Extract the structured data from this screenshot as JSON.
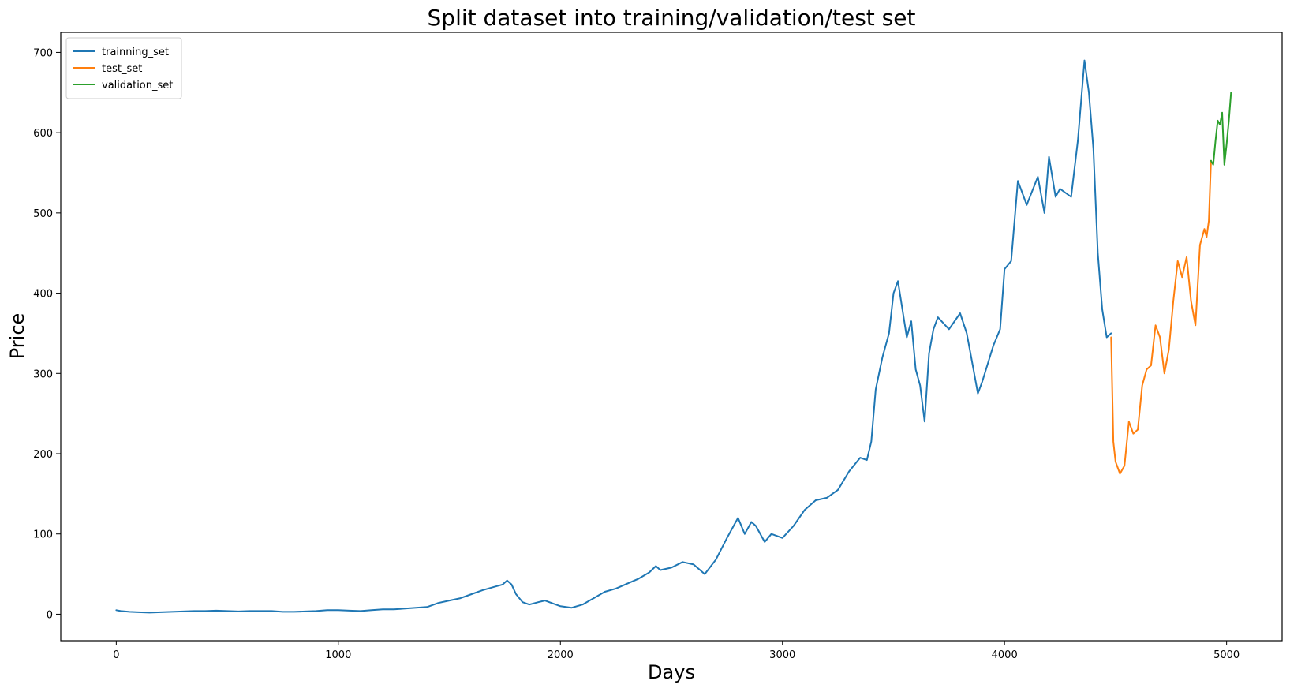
{
  "chart_data": {
    "type": "line",
    "title": "Split dataset into training/validation/test set",
    "xlabel": "Days",
    "ylabel": "Price",
    "xlim": [
      -250,
      5250
    ],
    "ylim": [
      -33,
      725
    ],
    "x_ticks": [
      0,
      1000,
      2000,
      3000,
      4000,
      5000
    ],
    "y_ticks": [
      0,
      100,
      200,
      300,
      400,
      500,
      600,
      700
    ],
    "grid": false,
    "legend": "upper-left",
    "series": [
      {
        "name": "trainning_set",
        "color": "#1f77b4",
        "points": [
          [
            0,
            5
          ],
          [
            20,
            4
          ],
          [
            60,
            3
          ],
          [
            100,
            2.5
          ],
          [
            150,
            2
          ],
          [
            200,
            2.5
          ],
          [
            250,
            3
          ],
          [
            300,
            3.5
          ],
          [
            350,
            4
          ],
          [
            400,
            4
          ],
          [
            450,
            4.5
          ],
          [
            500,
            4
          ],
          [
            550,
            3.5
          ],
          [
            600,
            4
          ],
          [
            650,
            4
          ],
          [
            700,
            4
          ],
          [
            750,
            3
          ],
          [
            800,
            3
          ],
          [
            850,
            3.5
          ],
          [
            900,
            4
          ],
          [
            950,
            5
          ],
          [
            1000,
            5
          ],
          [
            1050,
            4.5
          ],
          [
            1100,
            4
          ],
          [
            1150,
            5
          ],
          [
            1200,
            6
          ],
          [
            1250,
            6
          ],
          [
            1300,
            7
          ],
          [
            1350,
            8
          ],
          [
            1400,
            9
          ],
          [
            1450,
            14
          ],
          [
            1500,
            17
          ],
          [
            1550,
            20
          ],
          [
            1600,
            25
          ],
          [
            1650,
            30
          ],
          [
            1700,
            34
          ],
          [
            1740,
            37
          ],
          [
            1760,
            42
          ],
          [
            1780,
            37
          ],
          [
            1800,
            25
          ],
          [
            1830,
            15
          ],
          [
            1860,
            12
          ],
          [
            1900,
            15
          ],
          [
            1930,
            17
          ],
          [
            1960,
            14
          ],
          [
            2000,
            10
          ],
          [
            2050,
            8
          ],
          [
            2100,
            12
          ],
          [
            2150,
            20
          ],
          [
            2200,
            28
          ],
          [
            2250,
            32
          ],
          [
            2300,
            38
          ],
          [
            2350,
            44
          ],
          [
            2400,
            52
          ],
          [
            2430,
            60
          ],
          [
            2450,
            55
          ],
          [
            2500,
            58
          ],
          [
            2550,
            65
          ],
          [
            2600,
            62
          ],
          [
            2650,
            50
          ],
          [
            2700,
            68
          ],
          [
            2750,
            95
          ],
          [
            2780,
            110
          ],
          [
            2800,
            120
          ],
          [
            2830,
            100
          ],
          [
            2860,
            115
          ],
          [
            2880,
            110
          ],
          [
            2920,
            90
          ],
          [
            2950,
            100
          ],
          [
            3000,
            95
          ],
          [
            3050,
            110
          ],
          [
            3100,
            130
          ],
          [
            3150,
            142
          ],
          [
            3200,
            145
          ],
          [
            3250,
            155
          ],
          [
            3300,
            178
          ],
          [
            3350,
            195
          ],
          [
            3380,
            192
          ],
          [
            3400,
            215
          ],
          [
            3420,
            280
          ],
          [
            3450,
            320
          ],
          [
            3480,
            350
          ],
          [
            3500,
            400
          ],
          [
            3520,
            415
          ],
          [
            3540,
            380
          ],
          [
            3560,
            345
          ],
          [
            3580,
            365
          ],
          [
            3600,
            305
          ],
          [
            3620,
            285
          ],
          [
            3640,
            240
          ],
          [
            3660,
            325
          ],
          [
            3680,
            355
          ],
          [
            3700,
            370
          ],
          [
            3750,
            355
          ],
          [
            3800,
            375
          ],
          [
            3830,
            350
          ],
          [
            3850,
            320
          ],
          [
            3880,
            275
          ],
          [
            3900,
            290
          ],
          [
            3950,
            335
          ],
          [
            3980,
            355
          ],
          [
            4000,
            430
          ],
          [
            4030,
            440
          ],
          [
            4060,
            540
          ],
          [
            4100,
            510
          ],
          [
            4150,
            545
          ],
          [
            4180,
            500
          ],
          [
            4200,
            570
          ],
          [
            4230,
            520
          ],
          [
            4250,
            530
          ],
          [
            4300,
            520
          ],
          [
            4330,
            590
          ],
          [
            4360,
            690
          ],
          [
            4380,
            650
          ],
          [
            4400,
            580
          ],
          [
            4420,
            450
          ],
          [
            4440,
            380
          ],
          [
            4460,
            345
          ],
          [
            4480,
            350
          ]
        ]
      },
      {
        "name": "test_set",
        "color": "#ff7f0e",
        "points": [
          [
            4480,
            345
          ],
          [
            4490,
            215
          ],
          [
            4500,
            190
          ],
          [
            4520,
            175
          ],
          [
            4540,
            185
          ],
          [
            4560,
            240
          ],
          [
            4580,
            225
          ],
          [
            4600,
            230
          ],
          [
            4620,
            285
          ],
          [
            4640,
            305
          ],
          [
            4660,
            310
          ],
          [
            4680,
            360
          ],
          [
            4700,
            345
          ],
          [
            4720,
            300
          ],
          [
            4740,
            330
          ],
          [
            4760,
            390
          ],
          [
            4780,
            440
          ],
          [
            4800,
            420
          ],
          [
            4820,
            445
          ],
          [
            4840,
            390
          ],
          [
            4860,
            360
          ],
          [
            4880,
            460
          ],
          [
            4900,
            480
          ],
          [
            4910,
            470
          ],
          [
            4920,
            490
          ],
          [
            4930,
            565
          ]
        ]
      },
      {
        "name": "validation_set",
        "color": "#2ca02c",
        "points": [
          [
            4930,
            565
          ],
          [
            4940,
            560
          ],
          [
            4950,
            590
          ],
          [
            4960,
            615
          ],
          [
            4970,
            610
          ],
          [
            4980,
            625
          ],
          [
            4990,
            560
          ],
          [
            5000,
            585
          ],
          [
            5010,
            615
          ],
          [
            5020,
            650
          ]
        ]
      }
    ]
  }
}
